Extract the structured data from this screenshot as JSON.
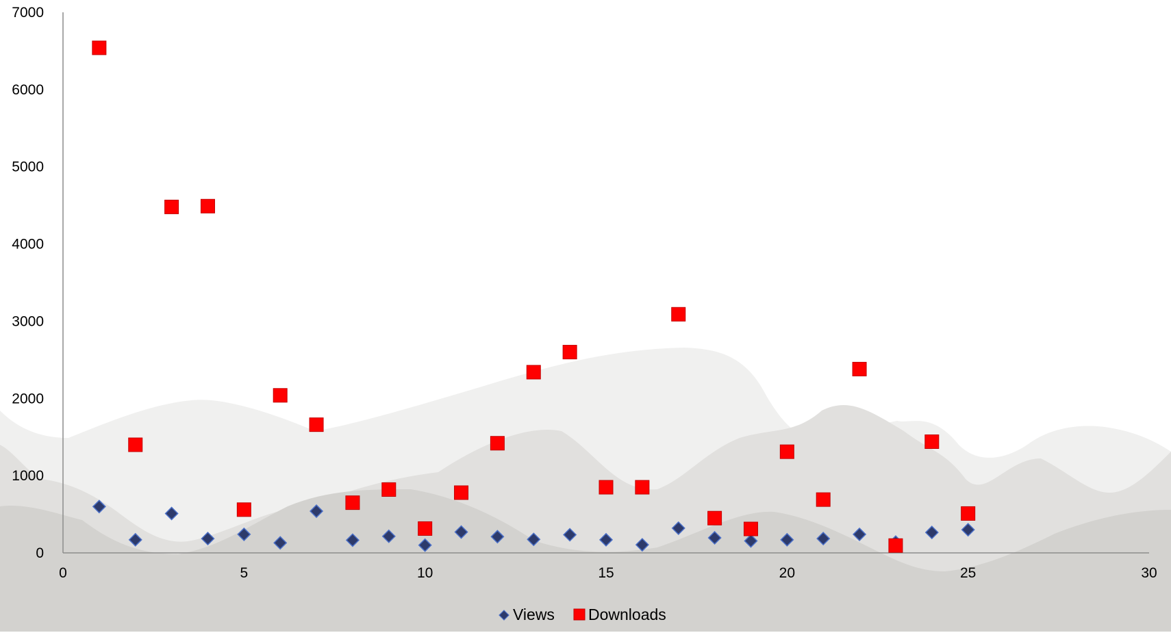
{
  "chart_data": {
    "type": "scatter",
    "title": "",
    "xlabel": "",
    "ylabel": "",
    "xlim": [
      0,
      30
    ],
    "ylim": [
      0,
      7000
    ],
    "x_ticks": [
      0,
      5,
      10,
      15,
      20,
      25,
      30
    ],
    "y_ticks": [
      0,
      1000,
      2000,
      3000,
      4000,
      5000,
      6000,
      7000
    ],
    "grid": false,
    "legend_position": "bottom",
    "series": [
      {
        "name": "Views",
        "marker": "diamond",
        "color": "#2d3a6b",
        "edge_color": "#4a6fc7",
        "x": [
          1,
          2,
          3,
          4,
          5,
          6,
          7,
          8,
          9,
          10,
          11,
          12,
          13,
          14,
          15,
          16,
          17,
          18,
          19,
          20,
          21,
          22,
          23,
          24,
          25
        ],
        "y": [
          600,
          170,
          510,
          185,
          240,
          130,
          540,
          165,
          215,
          100,
          270,
          210,
          175,
          235,
          170,
          105,
          320,
          195,
          155,
          170,
          185,
          240,
          140,
          265,
          300
        ]
      },
      {
        "name": "Downloads",
        "marker": "square",
        "color": "#ff0000",
        "edge_color": "#c40000",
        "x": [
          1,
          2,
          3,
          4,
          5,
          6,
          7,
          8,
          9,
          10,
          11,
          12,
          13,
          14,
          15,
          16,
          17,
          18,
          19,
          20,
          21,
          22,
          23,
          24,
          25
        ],
        "y": [
          6540,
          1400,
          4480,
          4490,
          560,
          2040,
          1660,
          650,
          820,
          315,
          780,
          1420,
          2340,
          2600,
          850,
          850,
          3090,
          450,
          310,
          1310,
          690,
          2380,
          95,
          1440,
          510
        ]
      }
    ]
  }
}
